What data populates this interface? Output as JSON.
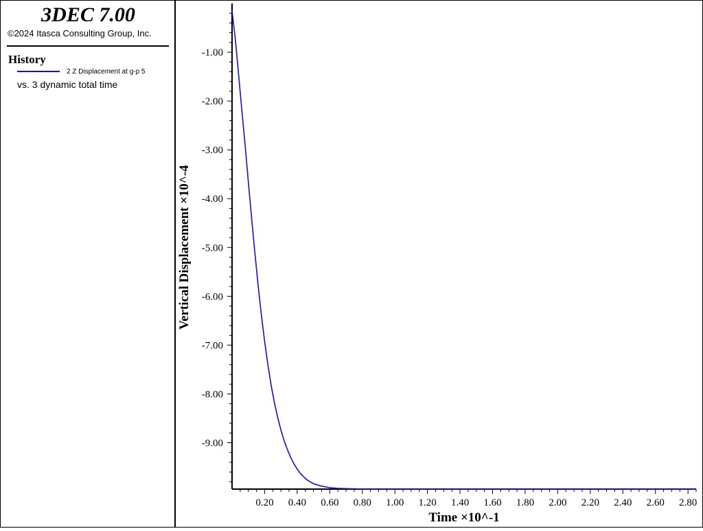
{
  "app": {
    "title": "3DEC 7.00",
    "copyright": "©2024 Itasca Consulting Group, Inc."
  },
  "legend": {
    "heading": "History",
    "series_label": "2 Z Displacement at g-p 5",
    "vs_label": "vs. 3 dynamic total time",
    "series_color": "#1010d0"
  },
  "chart_data": {
    "type": "line",
    "xlabel": "Time ×10^-1",
    "ylabel": "Vertical Displacement ×10^-4",
    "xlim": [
      0.0,
      2.85
    ],
    "ylim": [
      -9.95,
      0.0
    ],
    "x_ticks": [
      "0.20",
      "0.40",
      "0.60",
      "0.80",
      "1.00",
      "1.20",
      "1.40",
      "1.60",
      "1.80",
      "2.00",
      "2.20",
      "2.40",
      "2.60",
      "2.80"
    ],
    "y_ticks": [
      "-1.00",
      "-2.00",
      "-3.00",
      "-4.00",
      "-5.00",
      "-6.00",
      "-7.00",
      "-8.00",
      "-9.00"
    ],
    "grid": false,
    "series": [
      {
        "color": "#1010d0",
        "x": [
          0.0,
          0.02,
          0.04,
          0.06,
          0.08,
          0.1,
          0.12,
          0.14,
          0.16,
          0.18,
          0.2,
          0.22,
          0.24,
          0.26,
          0.28,
          0.3,
          0.32,
          0.34,
          0.36,
          0.38,
          0.4,
          0.42,
          0.44,
          0.46,
          0.48,
          0.5,
          0.55,
          0.6,
          0.65,
          0.7,
          0.75,
          0.8,
          0.9,
          1.0,
          1.2,
          1.5,
          2.0,
          2.5,
          2.85
        ],
        "y": [
          -0.15,
          -0.72,
          -1.45,
          -2.18,
          -2.9,
          -3.65,
          -4.4,
          -5.1,
          -5.78,
          -6.38,
          -6.92,
          -7.4,
          -7.82,
          -8.18,
          -8.48,
          -8.74,
          -8.96,
          -9.14,
          -9.3,
          -9.43,
          -9.54,
          -9.63,
          -9.7,
          -9.76,
          -9.8,
          -9.84,
          -9.89,
          -9.92,
          -9.935,
          -9.94,
          -9.945,
          -9.95,
          -9.952,
          -9.953,
          -9.953,
          -9.953,
          -9.953,
          -9.953,
          -9.953
        ]
      }
    ]
  }
}
